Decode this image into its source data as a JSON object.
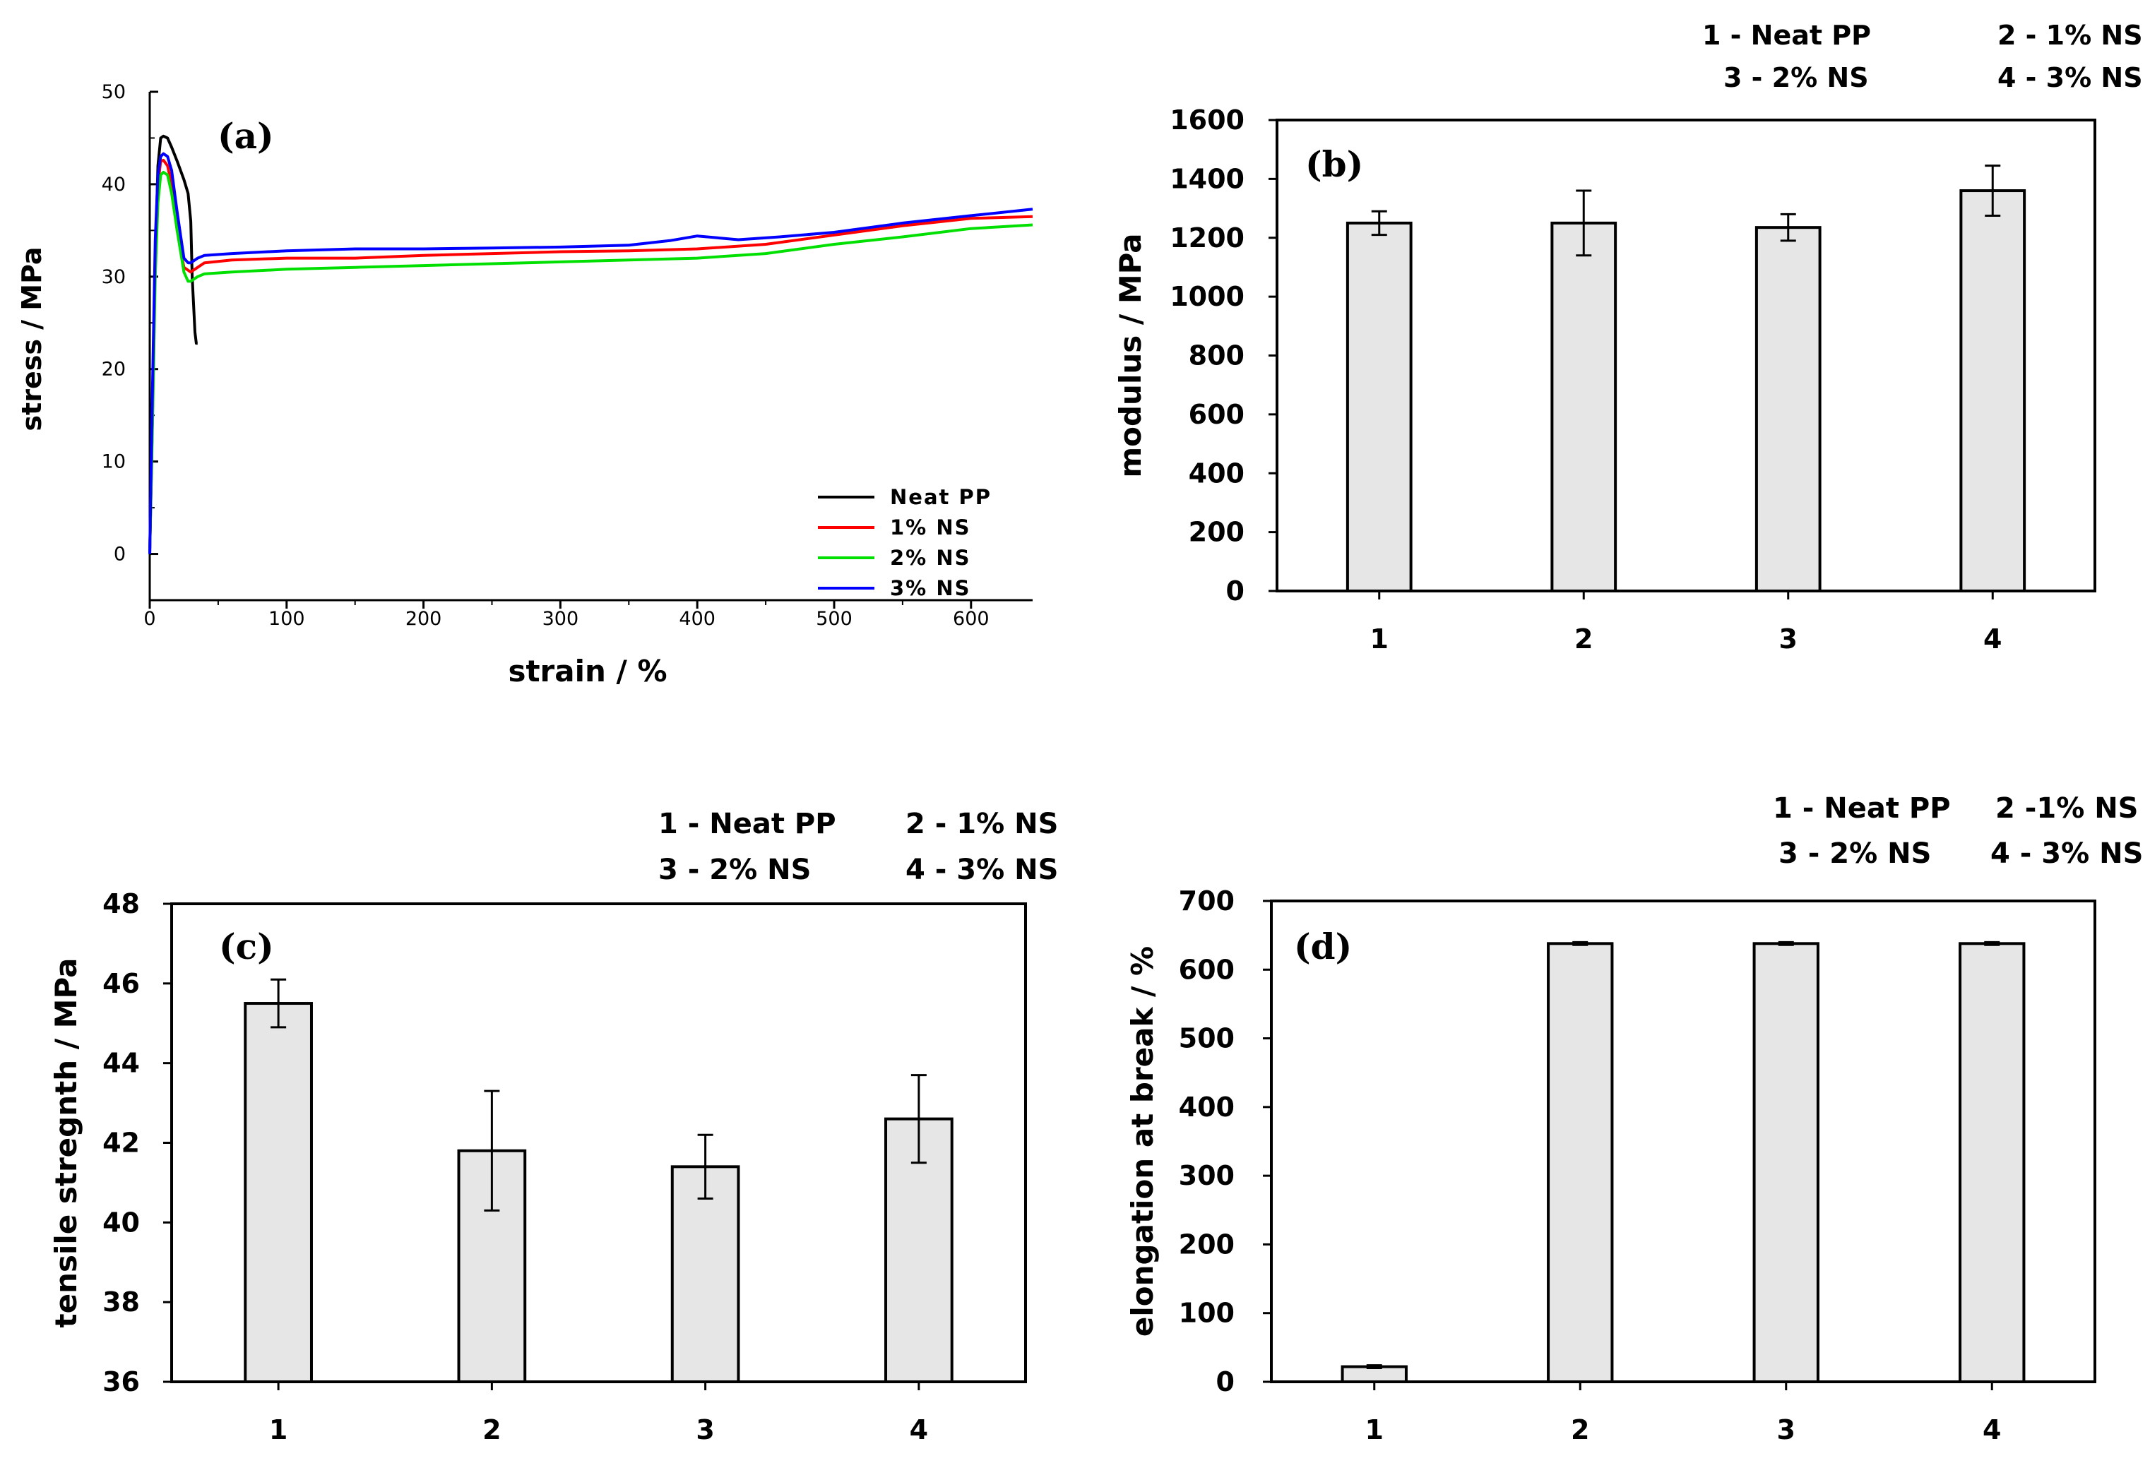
{
  "figure": {
    "panels": [
      "a",
      "b",
      "c",
      "d"
    ]
  },
  "chart_data": [
    {
      "id": "a",
      "type": "line",
      "panel_label": "(a)",
      "title": "",
      "xlabel": "strain / %",
      "ylabel": "stress / MPa",
      "xlim": [
        0,
        645
      ],
      "ylim": [
        -5,
        50
      ],
      "xticks": [
        0,
        100,
        200,
        300,
        400,
        500,
        600
      ],
      "yticks": [
        0,
        10,
        20,
        30,
        40,
        50
      ],
      "legend_position": "bottom-right",
      "series": [
        {
          "name": "Neat PP",
          "color": "#000000",
          "x": [
            0,
            2,
            4,
            6,
            8,
            10,
            13,
            16,
            20,
            25,
            28,
            30,
            31,
            33,
            34,
            35
          ],
          "y": [
            0,
            15,
            32,
            42,
            45,
            45.2,
            45,
            44,
            42.5,
            40.5,
            39,
            36,
            30,
            24,
            22.8,
            22.8
          ]
        },
        {
          "name": "1% NS",
          "color": "#ff0000",
          "x": [
            0,
            2,
            4,
            6,
            8,
            10,
            13,
            16,
            20,
            25,
            30,
            35,
            40,
            60,
            100,
            150,
            200,
            250,
            300,
            350,
            400,
            450,
            500,
            550,
            600,
            645
          ],
          "y": [
            0,
            16,
            32,
            40,
            42.5,
            42.6,
            42,
            40,
            35,
            31,
            30.5,
            31,
            31.5,
            31.8,
            32,
            32,
            32.3,
            32.5,
            32.7,
            32.8,
            33,
            33.5,
            34.5,
            35.5,
            36.3,
            36.5
          ]
        },
        {
          "name": "2% NS",
          "color": "#00e000",
          "x": [
            0,
            2,
            4,
            6,
            8,
            10,
            13,
            16,
            20,
            25,
            28,
            30,
            35,
            40,
            60,
            100,
            150,
            200,
            250,
            300,
            350,
            400,
            450,
            500,
            550,
            600,
            645
          ],
          "y": [
            0,
            14,
            30,
            38,
            41,
            41.3,
            41,
            39,
            35,
            30.5,
            29.5,
            29.5,
            30,
            30.3,
            30.5,
            30.8,
            31,
            31.2,
            31.4,
            31.6,
            31.8,
            32,
            32.5,
            33.5,
            34.3,
            35.2,
            35.6
          ]
        },
        {
          "name": "3% NS",
          "color": "#0000ff",
          "x": [
            0,
            2,
            4,
            6,
            8,
            10,
            13,
            16,
            20,
            25,
            28,
            30,
            35,
            40,
            60,
            100,
            150,
            200,
            250,
            300,
            350,
            380,
            400,
            430,
            460,
            500,
            550,
            600,
            645
          ],
          "y": [
            0,
            18,
            34,
            41,
            43,
            43.3,
            43,
            41.5,
            37,
            32,
            31.5,
            31.5,
            32,
            32.3,
            32.5,
            32.8,
            33,
            33,
            33.1,
            33.2,
            33.4,
            33.9,
            34.4,
            34,
            34.3,
            34.8,
            35.8,
            36.6,
            37.3
          ]
        }
      ]
    },
    {
      "id": "b",
      "type": "bar",
      "panel_label": "(b)",
      "title": "",
      "xlabel": "",
      "ylabel": "modulus / MPa",
      "categories": [
        "1",
        "2",
        "3",
        "4"
      ],
      "values": [
        1250,
        1250,
        1235,
        1360
      ],
      "errors": [
        40,
        110,
        45,
        85
      ],
      "ylim": [
        0,
        1600
      ],
      "yticks": [
        0,
        200,
        400,
        600,
        800,
        1000,
        1200,
        1400,
        1600
      ],
      "legend_position": "top-right",
      "legend": [
        "1 - Neat PP",
        "2 - 1% NS",
        "3 - 2% NS",
        "4 - 3% NS"
      ]
    },
    {
      "id": "c",
      "type": "bar",
      "panel_label": "(c)",
      "title": "",
      "xlabel": "",
      "ylabel": "tensile stregnth / MPa",
      "categories": [
        "1",
        "2",
        "3",
        "4"
      ],
      "values": [
        45.5,
        41.8,
        41.4,
        42.6
      ],
      "errors": [
        0.6,
        1.5,
        0.8,
        1.1
      ],
      "ylim": [
        36,
        48
      ],
      "yticks": [
        36,
        38,
        40,
        42,
        44,
        46,
        48
      ],
      "legend_position": "top-right",
      "legend": [
        "1 - Neat PP",
        "2 - 1% NS",
        "3 - 2% NS",
        "4 - 3% NS"
      ]
    },
    {
      "id": "d",
      "type": "bar",
      "panel_label": "(d)",
      "title": "",
      "xlabel": "",
      "ylabel": "elongation at break / %",
      "categories": [
        "1",
        "2",
        "3",
        "4"
      ],
      "values": [
        22,
        638,
        638,
        638
      ],
      "errors": [
        2,
        2,
        2,
        2
      ],
      "ylim": [
        0,
        700
      ],
      "yticks": [
        0,
        100,
        200,
        300,
        400,
        500,
        600,
        700
      ],
      "legend_position": "top-right",
      "legend": [
        "1 - Neat PP",
        "2 -1% NS",
        "3 - 2% NS",
        "4 - 3% NS"
      ]
    }
  ]
}
